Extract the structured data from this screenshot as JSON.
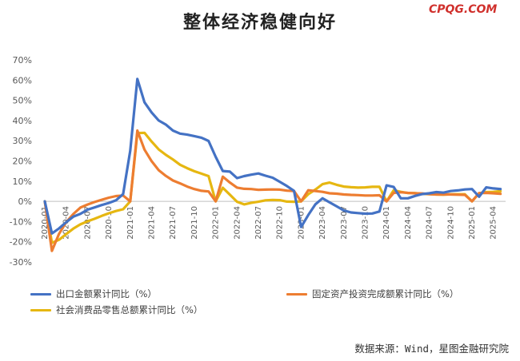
{
  "title": "整体经济稳健向好",
  "watermark": "CPQG.COM",
  "source": "数据来源：Wind，星图金融研究院",
  "chart_data": {
    "type": "line",
    "ylim": [
      -30,
      70
    ],
    "ytick_step": 10,
    "ytick_labels": [
      "-30%",
      "-20%",
      "-10%",
      "0%",
      "10%",
      "20%",
      "30%",
      "40%",
      "50%",
      "60%",
      "70%"
    ],
    "grid": false,
    "legend_position": "bottom",
    "x": [
      "2020-01",
      "2020-02",
      "2020-03",
      "2020-04",
      "2020-05",
      "2020-06",
      "2020-07",
      "2020-08",
      "2020-09",
      "2020-10",
      "2020-11",
      "2020-12",
      "2021-01",
      "2021-02",
      "2021-03",
      "2021-04",
      "2021-05",
      "2021-06",
      "2021-07",
      "2021-08",
      "2021-09",
      "2021-10",
      "2021-11",
      "2021-12",
      "2022-01",
      "2022-02",
      "2022-03",
      "2022-04",
      "2022-05",
      "2022-06",
      "2022-07",
      "2022-08",
      "2022-09",
      "2022-10",
      "2022-11",
      "2022-12",
      "2023-01",
      "2023-02",
      "2023-03",
      "2023-04",
      "2023-05",
      "2023-06",
      "2023-07",
      "2023-08",
      "2023-09",
      "2023-10",
      "2023-11",
      "2023-12",
      "2024-01",
      "2024-02",
      "2024-03",
      "2024-04",
      "2024-05",
      "2024-06",
      "2024-07",
      "2024-08",
      "2024-09",
      "2024-10",
      "2024-11",
      "2024-12",
      "2025-01",
      "2025-02",
      "2025-03",
      "2025-04",
      "2025-05"
    ],
    "x_tick_labels": [
      "2020-01",
      "2020-04",
      "2020-07",
      "2020-10",
      "2021-01",
      "2021-04",
      "2021-07",
      "2021-10",
      "2022-01",
      "2022-04",
      "2022-07",
      "2022-10",
      "2023-01",
      "2023-04",
      "2023-07",
      "2023-10",
      "2024-01",
      "2024-04",
      "2024-07",
      "2024-10",
      "2025-01",
      "2025-04"
    ],
    "series": [
      {
        "name": "出口金额累计同比（%）",
        "color": "#4472c4",
        "values": [
          0,
          -15.9,
          -13.4,
          -10.3,
          -7.6,
          -6.2,
          -4.1,
          -3.0,
          -1.8,
          -0.8,
          0.5,
          3.6,
          25,
          60.6,
          49,
          44,
          40,
          38,
          35,
          33.5,
          33,
          32.3,
          31.5,
          29.9,
          22,
          15,
          14.7,
          11.5,
          12.5,
          13.2,
          13.8,
          12.7,
          11.7,
          9.7,
          7.6,
          5.2,
          -12.7,
          -6.8,
          -1.5,
          1.5,
          -0.5,
          -2.5,
          -4.5,
          -5.5,
          -5.8,
          -6.1,
          -6,
          -5,
          7.9,
          7.1,
          1.5,
          1.5,
          2.7,
          3.6,
          4.0,
          4.6,
          4.3,
          5.1,
          5.4,
          5.9,
          6.1,
          2.3,
          6.9,
          6.4,
          6.1
        ]
      },
      {
        "name": "固定资产投资完成额累计同比（%）",
        "color": "#ed7d31",
        "values": [
          0,
          -24.5,
          -16.1,
          -10.3,
          -6.3,
          -3.1,
          -1.6,
          -0.3,
          0.8,
          1.8,
          2.6,
          2.9,
          0,
          35,
          25.6,
          19.9,
          15.4,
          12.6,
          10.3,
          8.9,
          7.3,
          6.1,
          5.2,
          4.9,
          0,
          12.2,
          9.3,
          6.8,
          6.2,
          6.1,
          5.7,
          5.8,
          5.9,
          5.8,
          5.3,
          5.1,
          0,
          5.5,
          5.1,
          4.7,
          4.0,
          3.8,
          3.4,
          3.2,
          3.1,
          2.9,
          2.9,
          3.0,
          0,
          4.2,
          4.5,
          4.2,
          4.0,
          3.9,
          3.6,
          3.4,
          3.4,
          3.4,
          3.3,
          3.2,
          0,
          4.1,
          4.2,
          4.0,
          3.7
        ]
      },
      {
        "name": "社会消费品零售总额累计同比（%）",
        "color": "#e6b711",
        "values": [
          0,
          -20.5,
          -19.0,
          -16.2,
          -13.5,
          -11.4,
          -9.9,
          -8.6,
          -7.2,
          -5.9,
          -4.8,
          -3.9,
          0,
          33.8,
          33.9,
          29.6,
          25.7,
          23.0,
          20.7,
          18.1,
          16.4,
          14.9,
          13.7,
          12.5,
          0,
          6.7,
          3.3,
          -0.2,
          -1.5,
          -0.7,
          -0.2,
          0.5,
          0.7,
          0.6,
          -0.1,
          -0.2,
          0,
          3.5,
          5.8,
          8.5,
          9.3,
          8.2,
          7.3,
          7.0,
          6.8,
          6.9,
          7.2,
          7.2,
          0,
          5.5,
          4.7,
          4.1,
          4.1,
          3.7,
          3.5,
          3.4,
          3.3,
          3.5,
          3.5,
          3.5,
          0,
          4.0,
          4.6,
          4.7,
          5.0
        ]
      }
    ]
  }
}
